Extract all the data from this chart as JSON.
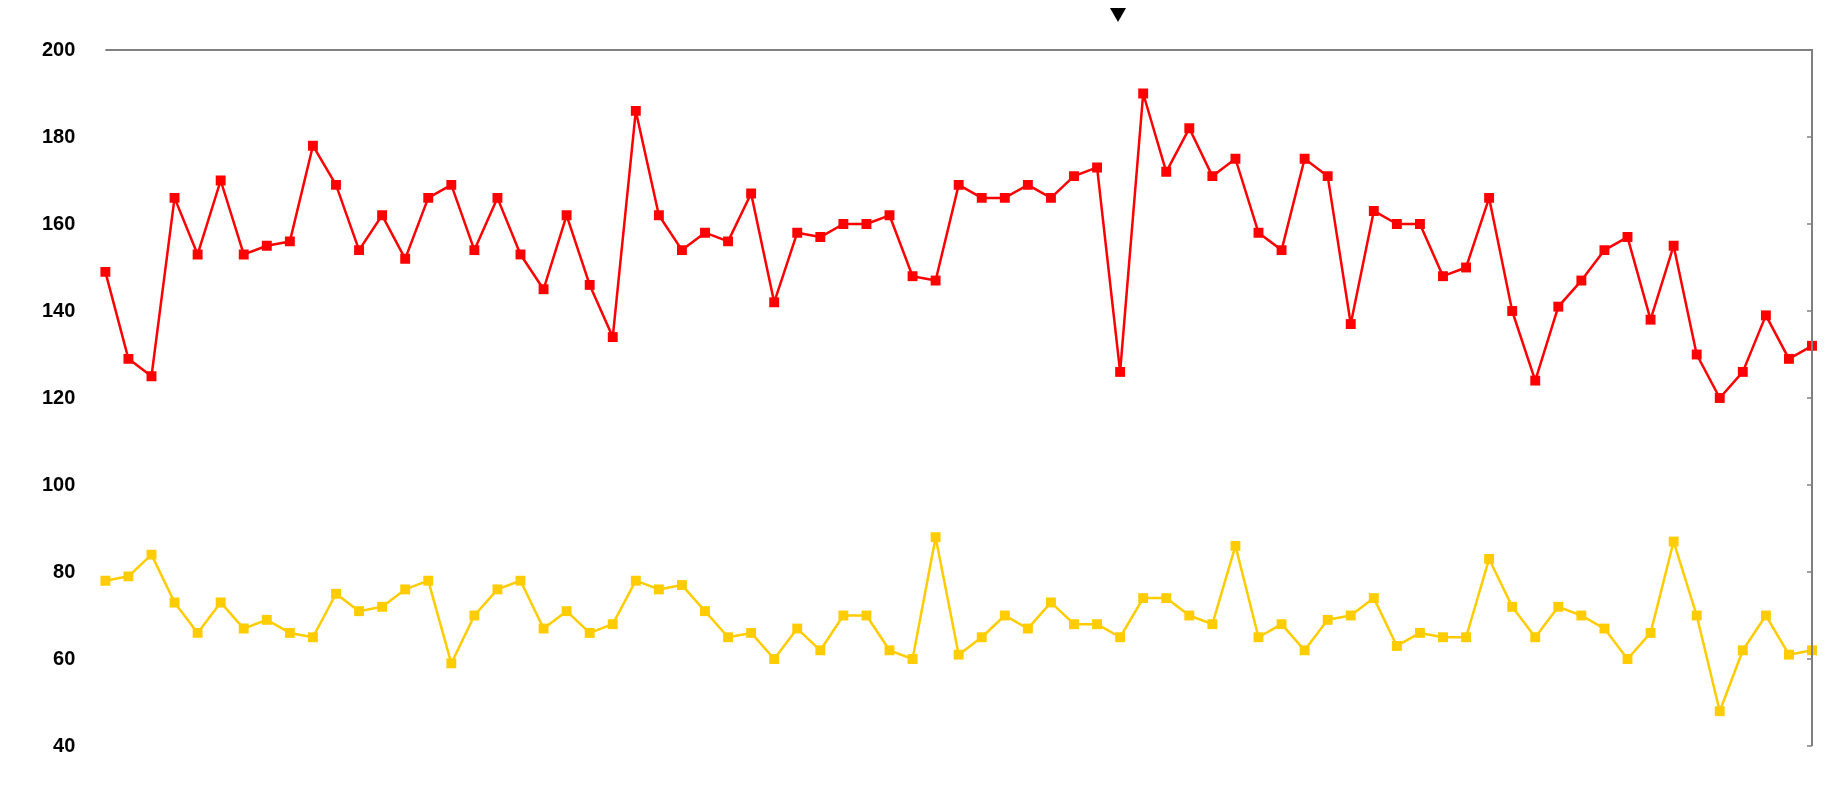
{
  "chart_data": {
    "type": "line",
    "categories": [
      null,
      null,
      null,
      null,
      null,
      null,
      null,
      null,
      null,
      null,
      null,
      null,
      null,
      null,
      null,
      null,
      null,
      null,
      null,
      null,
      null,
      null,
      null,
      null,
      null,
      null,
      null,
      null,
      null,
      null,
      null,
      null,
      null,
      null,
      null,
      null,
      null,
      null,
      null,
      null,
      null,
      null,
      null,
      null,
      null,
      null,
      null,
      null,
      null,
      null,
      null,
      null,
      null,
      null,
      null,
      null,
      null,
      null,
      null,
      null,
      null,
      null,
      null,
      null,
      null,
      null,
      null,
      null,
      null,
      null,
      null,
      null,
      null,
      null,
      null
    ],
    "series": [
      {
        "color": "#ff0000",
        "values": [
          149,
          129,
          125,
          166,
          153,
          170,
          153,
          155,
          156,
          178,
          169,
          154,
          162,
          152,
          166,
          169,
          154,
          166,
          153,
          145,
          162,
          146,
          134,
          186,
          162,
          154,
          158,
          156,
          167,
          142,
          158,
          157,
          160,
          160,
          162,
          148,
          147,
          169,
          166,
          166,
          169,
          166,
          171,
          173,
          126,
          190,
          172,
          182,
          171,
          175,
          158,
          154,
          175,
          171,
          137,
          163,
          160,
          160,
          148,
          150,
          166,
          140,
          124,
          141,
          147,
          154,
          157,
          138,
          155,
          130,
          120,
          126,
          139,
          129,
          132
        ]
      },
      {
        "color": "#ffcc00",
        "values": [
          78,
          79,
          84,
          73,
          66,
          73,
          67,
          69,
          66,
          65,
          75,
          71,
          72,
          76,
          78,
          59,
          70,
          76,
          78,
          67,
          71,
          66,
          68,
          78,
          76,
          77,
          71,
          65,
          66,
          60,
          67,
          62,
          70,
          70,
          62,
          60,
          88,
          61,
          65,
          70,
          67,
          73,
          68,
          68,
          65,
          74,
          74,
          70,
          68,
          86,
          65,
          68,
          62,
          69,
          70,
          74,
          63,
          66,
          65,
          65,
          83,
          72,
          65,
          72,
          70,
          67,
          60,
          66,
          87,
          70,
          48,
          62,
          70,
          61,
          62
        ]
      }
    ],
    "ylim": [
      40,
      200
    ],
    "yticks": [
      40,
      60,
      80,
      100,
      120,
      140,
      160,
      180,
      200
    ],
    "tick_labels": "y",
    "grid": false,
    "legend": false,
    "marker": "square",
    "line_style": "solid"
  }
}
